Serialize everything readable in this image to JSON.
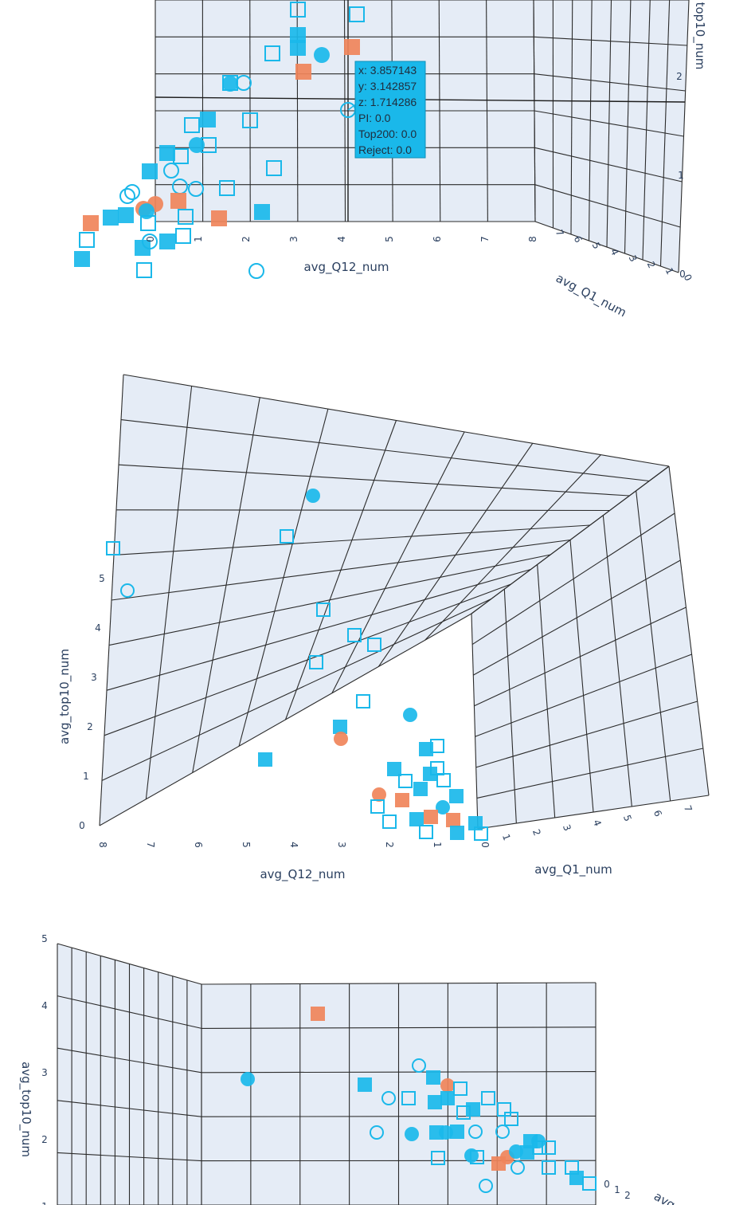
{
  "colors": {
    "blue": "#1ab8ea",
    "orange": "#f0845a",
    "wall": "#e5ecf6",
    "grid": "#2b2b2b",
    "text": "#2a3f5f",
    "tooltip_bg": "#1ab8ea"
  },
  "chart_data": [
    {
      "type": "scatter3d",
      "view": "top-angled",
      "axes": {
        "x": {
          "label": "avg_Q12_num",
          "ticks": [
            "0",
            "1",
            "2",
            "3",
            "4",
            "5",
            "6",
            "7",
            "8"
          ]
        },
        "y": {
          "label": "avg_Q1_num",
          "ticks": [
            "0",
            "1",
            "2",
            "3",
            "4",
            "5",
            "6",
            "7"
          ]
        },
        "z": {
          "label": "top10_num",
          "ticks": [
            "0",
            "1",
            "2"
          ]
        }
      },
      "tooltip": {
        "lines": [
          "x: 3.857143",
          "y: 3.142857",
          "z: 1.714286",
          "PI: 0.0",
          "Top200: 0.0",
          "Reject: 0.0"
        ]
      },
      "marker_symbols": [
        "circle",
        "square",
        "circle-open",
        "square-open"
      ]
    },
    {
      "type": "scatter3d",
      "view": "side-angled",
      "axes": {
        "x": {
          "label": "avg_Q12_num",
          "ticks": [
            "8",
            "7",
            "6",
            "5",
            "4",
            "3",
            "2",
            "1",
            "0"
          ]
        },
        "y": {
          "label": "avg_Q1_num",
          "ticks": [
            "1",
            "2",
            "3",
            "4",
            "5",
            "6",
            "7"
          ]
        },
        "z": {
          "label": "avg_top10_num",
          "ticks": [
            "0",
            "1",
            "2",
            "3",
            "4",
            "5"
          ]
        }
      }
    },
    {
      "type": "scatter3d",
      "view": "front",
      "axes": {
        "x": {
          "label": "avg_Q12_num",
          "ticks": []
        },
        "y": {
          "label": "avg",
          "ticks": [
            "0",
            "1",
            "2"
          ]
        },
        "z": {
          "label": "avg_top10_num",
          "ticks": [
            "5",
            "4",
            "3",
            "2",
            "1"
          ]
        }
      }
    }
  ]
}
